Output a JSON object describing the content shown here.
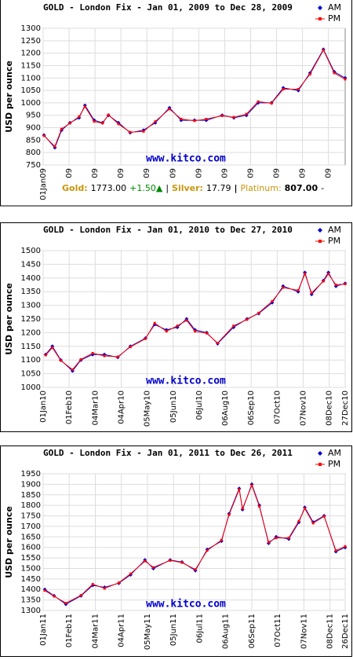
{
  "chart_data": [
    {
      "type": "line",
      "title": "GOLD - London Fix - Jan 01, 2009 to Dec 28, 2009",
      "ylabel": "USD per ounce",
      "watermark": "www.kitco.com",
      "annotations": [
        "Gold:",
        "1773.00",
        "+1.50▲",
        "|",
        "Silver:",
        "17.79",
        "|",
        "Platinum:",
        "807.00",
        "-"
      ],
      "x": [
        "2009-01-02",
        "2009-01-15",
        "2009-01-23",
        "2009-02-02",
        "2009-02-13",
        "2009-02-20",
        "2009-03-03",
        "2009-03-13",
        "2009-03-20",
        "2009-04-01",
        "2009-04-15",
        "2009-05-01",
        "2009-05-15",
        "2009-06-01",
        "2009-06-15",
        "2009-07-01",
        "2009-07-15",
        "2009-08-03",
        "2009-08-17",
        "2009-09-01",
        "2009-09-15",
        "2009-10-01",
        "2009-10-15",
        "2009-11-02",
        "2009-11-16",
        "2009-12-02",
        "2009-12-15",
        "2009-12-28"
      ],
      "series": [
        {
          "name": "AM",
          "color": "#0000cc",
          "values": [
            870,
            820,
            890,
            920,
            940,
            990,
            930,
            920,
            950,
            920,
            880,
            890,
            920,
            980,
            930,
            930,
            930,
            950,
            940,
            950,
            1000,
            1000,
            1060,
            1050,
            1120,
            1215,
            1125,
            1100
          ]
        },
        {
          "name": "PM",
          "color": "#ff0000",
          "values": [
            868,
            825,
            895,
            918,
            945,
            985,
            925,
            918,
            952,
            915,
            882,
            885,
            925,
            975,
            935,
            928,
            935,
            948,
            942,
            955,
            1005,
            998,
            1055,
            1055,
            1115,
            1212,
            1120,
            1095
          ]
        }
      ],
      "xlim": [
        "2009-01-01",
        "2009-12-28"
      ],
      "ylim": [
        750,
        1300
      ],
      "yticks": [
        750,
        800,
        850,
        900,
        950,
        1000,
        1050,
        1100,
        1150,
        1200,
        1250,
        1300
      ],
      "xticks": [
        {
          "value": "2009-01-01",
          "label": "01Jan09"
        },
        {
          "value": "2009-02-01",
          "label": "09"
        },
        {
          "value": "2009-03-04",
          "label": "09"
        },
        {
          "value": "2009-04-04",
          "label": "09"
        },
        {
          "value": "2009-05-05",
          "label": "09"
        },
        {
          "value": "2009-06-05",
          "label": "09"
        },
        {
          "value": "2009-07-06",
          "label": "09"
        },
        {
          "value": "2009-08-06",
          "label": "09"
        },
        {
          "value": "2009-09-06",
          "label": "09"
        },
        {
          "value": "2009-10-07",
          "label": "09"
        },
        {
          "value": "2009-11-07",
          "label": "09"
        },
        {
          "value": "2009-12-08",
          "label": "09"
        }
      ],
      "grid": true
    },
    {
      "type": "line",
      "title": "GOLD - London Fix - Jan 01, 2010 to Dec 27, 2010",
      "ylabel": "USD per ounce",
      "watermark": "www.kitco.com",
      "x": [
        "2010-01-04",
        "2010-01-12",
        "2010-01-22",
        "2010-02-05",
        "2010-02-15",
        "2010-03-01",
        "2010-03-15",
        "2010-03-31",
        "2010-04-15",
        "2010-05-03",
        "2010-05-14",
        "2010-05-28",
        "2010-06-10",
        "2010-06-21",
        "2010-07-01",
        "2010-07-15",
        "2010-07-28",
        "2010-08-16",
        "2010-09-01",
        "2010-09-15",
        "2010-10-01",
        "2010-10-14",
        "2010-11-01",
        "2010-11-09",
        "2010-11-17",
        "2010-12-01",
        "2010-12-07",
        "2010-12-16",
        "2010-12-27"
      ],
      "series": [
        {
          "name": "AM",
          "color": "#0000cc",
          "values": [
            1120,
            1150,
            1100,
            1060,
            1100,
            1120,
            1120,
            1110,
            1150,
            1180,
            1230,
            1210,
            1220,
            1250,
            1210,
            1200,
            1160,
            1220,
            1250,
            1270,
            1310,
            1370,
            1350,
            1420,
            1340,
            1390,
            1420,
            1370,
            1380
          ]
        },
        {
          "name": "PM",
          "color": "#ff0000",
          "values": [
            1118,
            1145,
            1098,
            1065,
            1102,
            1125,
            1115,
            1112,
            1148,
            1178,
            1235,
            1205,
            1225,
            1245,
            1205,
            1198,
            1162,
            1225,
            1248,
            1272,
            1315,
            1365,
            1355,
            1415,
            1345,
            1388,
            1415,
            1375,
            1378
          ]
        }
      ],
      "xlim": [
        "2010-01-01",
        "2010-12-27"
      ],
      "ylim": [
        1000,
        1500
      ],
      "yticks": [
        1000,
        1050,
        1100,
        1150,
        1200,
        1250,
        1300,
        1350,
        1400,
        1450,
        1500
      ],
      "xticks": [
        {
          "value": "2010-01-01",
          "label": "01Jan10"
        },
        {
          "value": "2010-02-01",
          "label": "01Feb10"
        },
        {
          "value": "2010-03-04",
          "label": "04Mar10"
        },
        {
          "value": "2010-04-04",
          "label": "04Apr10"
        },
        {
          "value": "2010-05-05",
          "label": "05May10"
        },
        {
          "value": "2010-06-05",
          "label": "05Jun10"
        },
        {
          "value": "2010-07-06",
          "label": "06Jul10"
        },
        {
          "value": "2010-08-06",
          "label": "06Aug10"
        },
        {
          "value": "2010-09-06",
          "label": "06Sep10"
        },
        {
          "value": "2010-10-07",
          "label": "07Oct10"
        },
        {
          "value": "2010-11-07",
          "label": "07Nov10"
        },
        {
          "value": "2010-12-08",
          "label": "08Dec10"
        },
        {
          "value": "2010-12-27",
          "label": "27Dec10"
        }
      ],
      "grid": true
    },
    {
      "type": "line",
      "title": "GOLD - London Fix - Jan 01, 2011 to Dec 26, 2011",
      "ylabel": "USD per ounce",
      "watermark": "www.kitco.com",
      "x": [
        "2011-01-03",
        "2011-01-14",
        "2011-01-28",
        "2011-02-15",
        "2011-03-01",
        "2011-03-15",
        "2011-04-01",
        "2011-04-15",
        "2011-05-02",
        "2011-05-12",
        "2011-06-01",
        "2011-06-15",
        "2011-07-01",
        "2011-07-15",
        "2011-08-01",
        "2011-08-10",
        "2011-08-22",
        "2011-08-26",
        "2011-09-06",
        "2011-09-15",
        "2011-09-26",
        "2011-10-05",
        "2011-10-20",
        "2011-11-01",
        "2011-11-08",
        "2011-11-18",
        "2011-12-01",
        "2011-12-15",
        "2011-12-26"
      ],
      "series": [
        {
          "name": "AM",
          "color": "#0000cc",
          "values": [
            1400,
            1370,
            1330,
            1370,
            1420,
            1410,
            1430,
            1470,
            1540,
            1500,
            1540,
            1530,
            1490,
            1590,
            1630,
            1760,
            1880,
            1780,
            1900,
            1800,
            1620,
            1650,
            1640,
            1720,
            1790,
            1720,
            1750,
            1580,
            1600
          ]
        },
        {
          "name": "PM",
          "color": "#ff0000",
          "values": [
            1395,
            1368,
            1335,
            1372,
            1425,
            1405,
            1432,
            1475,
            1535,
            1505,
            1538,
            1528,
            1495,
            1585,
            1635,
            1755,
            1875,
            1785,
            1895,
            1795,
            1625,
            1645,
            1645,
            1725,
            1785,
            1715,
            1748,
            1585,
            1605
          ]
        }
      ],
      "xlim": [
        "2011-01-01",
        "2011-12-26"
      ],
      "ylim": [
        1300,
        1950
      ],
      "yticks": [
        1300,
        1350,
        1400,
        1450,
        1500,
        1550,
        1600,
        1650,
        1700,
        1750,
        1800,
        1850,
        1900,
        1950
      ],
      "xticks": [
        {
          "value": "2011-01-01",
          "label": "01Jan11"
        },
        {
          "value": "2011-02-01",
          "label": "01Feb11"
        },
        {
          "value": "2011-03-04",
          "label": "04Mar11"
        },
        {
          "value": "2011-04-04",
          "label": "04Apr11"
        },
        {
          "value": "2011-05-05",
          "label": "05May11"
        },
        {
          "value": "2011-06-05",
          "label": "05Jun11"
        },
        {
          "value": "2011-07-06",
          "label": "06Jul11"
        },
        {
          "value": "2011-08-06",
          "label": "06Aug11"
        },
        {
          "value": "2011-09-06",
          "label": "06Sep11"
        },
        {
          "value": "2011-10-07",
          "label": "07Oct11"
        },
        {
          "value": "2011-11-07",
          "label": "07Nov11"
        },
        {
          "value": "2011-12-08",
          "label": "08Dec11"
        },
        {
          "value": "2011-12-26",
          "label": "26Dec11"
        }
      ],
      "grid": true
    }
  ]
}
